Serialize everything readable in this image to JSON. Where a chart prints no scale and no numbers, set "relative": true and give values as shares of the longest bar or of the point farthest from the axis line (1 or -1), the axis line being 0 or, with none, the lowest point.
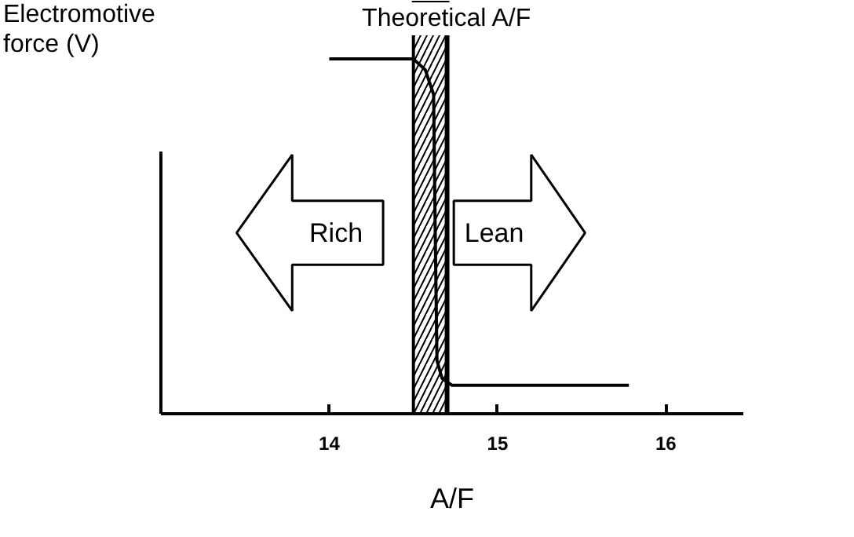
{
  "chart_data": {
    "type": "line",
    "relative": true,
    "xlabel": "A/F",
    "ylabel": "Electromotive force (V)",
    "x": [
      14.0,
      14.5,
      14.57,
      14.62,
      14.63,
      14.64,
      14.67,
      14.73,
      15.78
    ],
    "series": [
      {
        "color": "#000000",
        "values": [
          1,
          1,
          0.97,
          0.9,
          0.5,
          0.15,
          0.1,
          0.08,
          0.08
        ]
      }
    ],
    "xlim": [
      13.0,
      16.46
    ],
    "xticks": [
      14,
      15,
      16
    ],
    "ref_lines": [
      {
        "axis": "x",
        "value": 14.7,
        "label": "Theoretical A/F",
        "color": "#000000"
      }
    ],
    "bands": [
      {
        "axis": "x",
        "from": 14.5,
        "to": 14.7
      }
    ],
    "annotations": [
      "Rich",
      "Lean"
    ],
    "grid": false,
    "marker": "none",
    "line_style": "solid"
  }
}
